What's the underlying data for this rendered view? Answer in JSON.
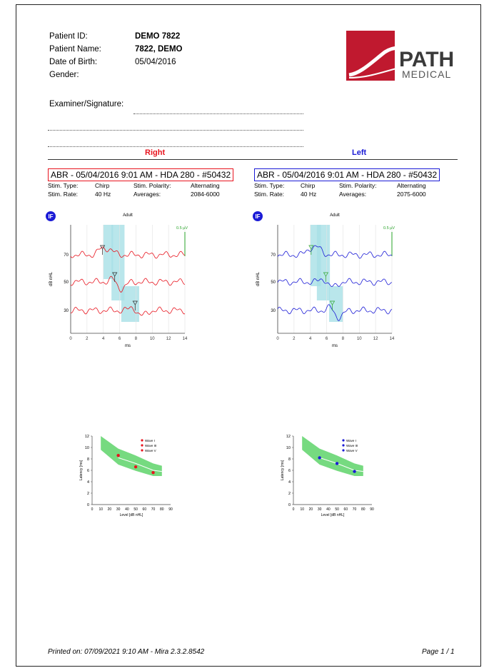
{
  "patient": {
    "id_label": "Patient ID:",
    "id_value": "DEMO 7822",
    "name_label": "Patient Name:",
    "name_value": "7822, DEMO",
    "dob_label": "Date of Birth:",
    "dob_value": "05/04/2016",
    "gender_label": "Gender:",
    "gender_value": ""
  },
  "examiner_label": "Examiner/Signature:",
  "logo": {
    "word1": "PATH",
    "word2": "MEDICAL",
    "color": "#c0192f"
  },
  "right": {
    "heading": "Right",
    "color": "#e8141e",
    "record": "ABR - 05/04/2016 9:01 AM - HDA 280 - #50432",
    "stim_type_label": "Stim. Type:",
    "stim_type": "Chirp",
    "polarity_label": "Stim. Polarity:",
    "polarity": "Alternating",
    "rate_label": "Stim. Rate:",
    "rate": "40 Hz",
    "averages_label": "Averages:",
    "averages": "2084-6000",
    "plot_title": "Adult",
    "scale_label": "0.5 µV",
    "ylabel": "dB nHL",
    "xlabel": "ms",
    "level_labels": [
      "70",
      "50",
      "30"
    ],
    "x_ticks": [
      "0",
      "2",
      "4",
      "6",
      "8",
      "10",
      "12",
      "14"
    ]
  },
  "left": {
    "heading": "Left",
    "color": "#1b1bd6",
    "record": "ABR - 05/04/2016 9:01 AM - HDA 280 - #50432",
    "stim_type_label": "Stim. Type:",
    "stim_type": "Chirp",
    "polarity_label": "Stim. Polarity:",
    "polarity": "Alternating",
    "rate_label": "Stim. Rate:",
    "rate": "40 Hz",
    "averages_label": "Averages:",
    "averages": "2075-6000",
    "plot_title": "Adult",
    "scale_label": "0.5 µV",
    "ylabel": "dB nHL",
    "xlabel": "ms",
    "level_labels": [
      "70",
      "50",
      "30"
    ],
    "x_ticks": [
      "0",
      "2",
      "4",
      "6",
      "8",
      "10",
      "12",
      "14"
    ]
  },
  "latency": {
    "ylabel": "Latency [ms]",
    "xlabel": "Level [dB nHL]",
    "y_ticks": [
      "0",
      "2",
      "4",
      "6",
      "8",
      "10",
      "12"
    ],
    "x_ticks": [
      "0",
      "10",
      "20",
      "30",
      "40",
      "50",
      "60",
      "70",
      "80",
      "90"
    ],
    "legend": [
      "Wave I",
      "Wave III",
      "Wave V"
    ]
  },
  "chart_data": [
    {
      "type": "line",
      "ear": "right",
      "x": [
        30,
        50,
        70
      ],
      "xlabel": "Level [dB nHL]",
      "ylabel": "Latency [ms]",
      "xlim": [
        0,
        90
      ],
      "ylim": [
        0,
        12
      ],
      "series": [
        {
          "name": "Wave V",
          "values": [
            8.6,
            6.6,
            5.6
          ]
        }
      ],
      "color": "#e8141e"
    },
    {
      "type": "line",
      "ear": "left",
      "x": [
        30,
        50,
        70
      ],
      "xlabel": "Level [dB nHL]",
      "ylabel": "Latency [ms]",
      "xlim": [
        0,
        90
      ],
      "ylim": [
        0,
        12
      ],
      "series": [
        {
          "name": "Wave V",
          "values": [
            8.2,
            7.2,
            5.8
          ]
        }
      ],
      "color": "#1b1bd6"
    }
  ],
  "footer": {
    "printed": "Printed on:  07/09/2021 9:10 AM - Mira 2.3.2.8542",
    "page": "Page 1 / 1"
  }
}
